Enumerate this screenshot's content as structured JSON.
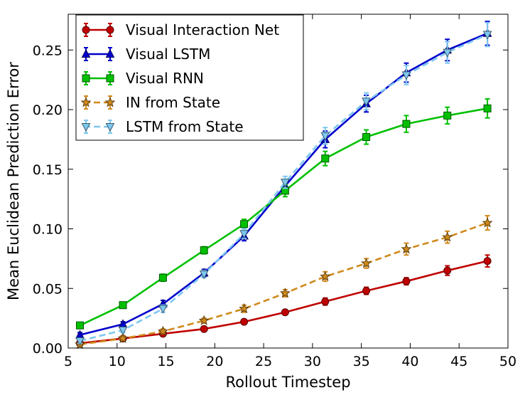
{
  "chart_data": {
    "type": "line",
    "title": "",
    "xlabel": "Rollout Timestep",
    "ylabel": "Mean Euclidean Prediction Error",
    "xlim": [
      5,
      50
    ],
    "ylim": [
      0.0,
      0.28
    ],
    "xticks": [
      5,
      10,
      15,
      20,
      25,
      30,
      35,
      40,
      45,
      50
    ],
    "yticks": [
      0.0,
      0.05,
      0.1,
      0.15,
      0.2,
      0.25
    ],
    "xtick_labels": [
      "5",
      "10",
      "15",
      "20",
      "25",
      "30",
      "35",
      "40",
      "45",
      "50"
    ],
    "ytick_labels": [
      "0.00",
      "0.05",
      "0.10",
      "0.15",
      "0.20",
      "0.25"
    ],
    "grid": false,
    "legend_position": "top-left",
    "x": [
      6.2,
      10.6,
      14.7,
      18.9,
      23.0,
      27.2,
      31.3,
      35.5,
      39.6,
      43.8,
      47.9
    ],
    "series": [
      {
        "name": "Visual Interaction Net",
        "color": "#c00000",
        "line": "solid",
        "marker": "circle",
        "values": [
          0.004,
          0.008,
          0.012,
          0.016,
          0.022,
          0.03,
          0.039,
          0.048,
          0.056,
          0.065,
          0.073
        ],
        "errors": [
          0.002,
          0.002,
          0.002,
          0.002,
          0.002,
          0.002,
          0.003,
          0.003,
          0.003,
          0.004,
          0.005
        ]
      },
      {
        "name": "Visual LSTM",
        "color": "#0000cc",
        "line": "solid",
        "marker": "triangle-up",
        "values": [
          0.011,
          0.02,
          0.037,
          0.063,
          0.094,
          0.136,
          0.175,
          0.205,
          0.231,
          0.25,
          0.264
        ],
        "errors": [
          0.002,
          0.002,
          0.003,
          0.003,
          0.004,
          0.005,
          0.007,
          0.007,
          0.008,
          0.009,
          0.01
        ]
      },
      {
        "name": "Visual RNN",
        "color": "#00c000",
        "line": "solid",
        "marker": "square",
        "values": [
          0.019,
          0.036,
          0.059,
          0.082,
          0.104,
          0.132,
          0.159,
          0.177,
          0.188,
          0.195,
          0.201
        ],
        "errors": [
          0.002,
          0.002,
          0.003,
          0.003,
          0.004,
          0.005,
          0.006,
          0.006,
          0.007,
          0.007,
          0.008
        ]
      },
      {
        "name": "IN from State",
        "color": "#d08a1c",
        "line": "dashed",
        "marker": "star",
        "values": [
          0.003,
          0.008,
          0.014,
          0.023,
          0.033,
          0.046,
          0.06,
          0.071,
          0.083,
          0.093,
          0.105
        ],
        "errors": [
          0.001,
          0.002,
          0.002,
          0.002,
          0.003,
          0.003,
          0.004,
          0.004,
          0.005,
          0.005,
          0.006
        ]
      },
      {
        "name": "LSTM from State",
        "color": "#7ec8f0",
        "line": "dashed",
        "marker": "triangle-down",
        "values": [
          0.006,
          0.015,
          0.033,
          0.062,
          0.096,
          0.139,
          0.178,
          0.207,
          0.229,
          0.248,
          0.263
        ],
        "errors": [
          0.002,
          0.002,
          0.003,
          0.003,
          0.004,
          0.005,
          0.007,
          0.007,
          0.008,
          0.009,
          0.01
        ]
      }
    ]
  }
}
